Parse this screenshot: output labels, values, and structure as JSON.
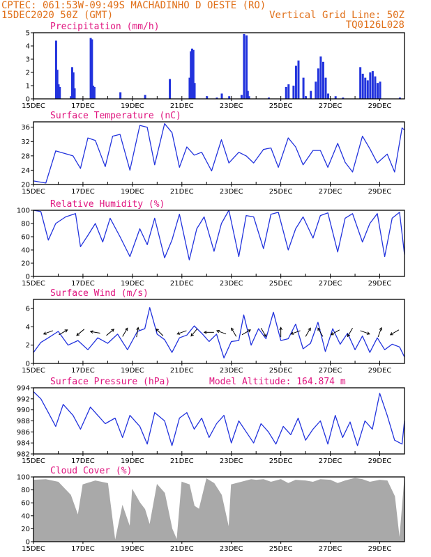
{
  "header": {
    "left_line1": "CPTEC:   061:53W-09:49S   MACHADINHO D OESTE (RO)",
    "left_line2": "15DEC2020 50Z (GMT)",
    "right_line2": "Vertical Grid Line: 50Z",
    "right_line3": "TQ0126L028"
  },
  "colors": {
    "header": "#e0701a",
    "title": "#e0147f",
    "line": "#2233dd",
    "bar": "#2233dd",
    "cloud": "#a9a9a9",
    "frame": "#000000"
  },
  "x_axis": {
    "start": "15DEC2020",
    "end": "30DEC2020",
    "tick_labels": [
      "15DEC",
      "17DEC",
      "19DEC",
      "21DEC",
      "23DEC",
      "25DEC",
      "27DEC",
      "29DEC"
    ],
    "tick_days": [
      15,
      17,
      19,
      21,
      23,
      25,
      27,
      29
    ]
  },
  "chart_data": [
    {
      "type": "bar",
      "title": "Precipitation (mm/h)",
      "ylim": [
        0,
        5
      ],
      "yticks": [
        0,
        1,
        2,
        3,
        4,
        5
      ],
      "x": [
        15.9,
        15.95,
        16.0,
        16.05,
        16.5,
        16.55,
        16.6,
        16.65,
        17.3,
        17.35,
        17.4,
        17.45,
        18.5,
        19.5,
        20.5,
        21.3,
        21.35,
        21.4,
        21.45,
        21.5,
        22.0,
        22.4,
        22.6,
        22.9,
        23.4,
        23.5,
        23.6,
        23.65,
        23.7,
        24.5,
        25.2,
        25.3,
        25.5,
        25.6,
        25.7,
        25.9,
        26.0,
        26.2,
        26.4,
        26.5,
        26.6,
        26.7,
        26.8,
        26.9,
        27.2,
        27.5,
        28.2,
        28.3,
        28.4,
        28.5,
        28.6,
        28.7,
        28.8,
        28.9,
        29.0,
        29.8
      ],
      "values": [
        4.4,
        2.2,
        1.1,
        0.9,
        0.2,
        2.4,
        2.0,
        0.8,
        4.6,
        4.5,
        1.0,
        0.9,
        0.5,
        0.3,
        1.5,
        1.6,
        3.6,
        3.8,
        3.7,
        1.2,
        0.2,
        0.1,
        0.4,
        0.2,
        0.3,
        4.9,
        4.8,
        0.6,
        0.2,
        0.1,
        0.9,
        1.1,
        1.0,
        2.5,
        2.9,
        1.6,
        0.2,
        0.6,
        1.3,
        2.3,
        3.2,
        2.8,
        1.6,
        0.4,
        0.2,
        0.1,
        2.4,
        1.9,
        1.6,
        1.4,
        2.0,
        2.1,
        1.7,
        1.2,
        1.3,
        0.1
      ]
    },
    {
      "type": "line",
      "title": "Surface Temperature (nC)",
      "ylim": [
        20,
        37.5
      ],
      "yticks": [
        20,
        24,
        28,
        32,
        36
      ],
      "x": [
        15.0,
        15.5,
        15.9,
        16.1,
        16.6,
        16.9,
        17.2,
        17.5,
        17.9,
        18.2,
        18.5,
        18.9,
        19.3,
        19.6,
        19.9,
        20.3,
        20.6,
        20.9,
        21.2,
        21.5,
        21.8,
        22.2,
        22.6,
        22.9,
        23.3,
        23.6,
        23.9,
        24.3,
        24.6,
        24.9,
        25.3,
        25.6,
        25.9,
        26.3,
        26.6,
        26.9,
        27.3,
        27.6,
        27.9,
        28.3,
        28.6,
        28.9,
        29.3,
        29.6,
        29.9,
        30.0
      ],
      "values": [
        21.0,
        20.4,
        29.4,
        29.0,
        28.0,
        24.5,
        33.0,
        32.3,
        25.0,
        33.5,
        34.0,
        24.0,
        36.5,
        36.0,
        25.5,
        37.0,
        34.5,
        24.8,
        30.5,
        28.2,
        29.0,
        23.8,
        32.5,
        26.0,
        29.0,
        28.0,
        26.0,
        29.8,
        30.2,
        24.8,
        33.0,
        30.5,
        25.5,
        29.5,
        29.5,
        24.8,
        31.5,
        26.2,
        23.5,
        33.5,
        30.0,
        26.0,
        28.5,
        23.5,
        35.8,
        35.2
      ]
    },
    {
      "type": "line",
      "title": "Relative Humidity (%)",
      "ylim": [
        0,
        100
      ],
      "yticks": [
        0,
        20,
        40,
        60,
        80,
        100
      ],
      "x": [
        15.0,
        15.3,
        15.6,
        15.9,
        16.3,
        16.7,
        16.9,
        17.2,
        17.5,
        17.8,
        18.1,
        18.5,
        18.9,
        19.3,
        19.6,
        19.9,
        20.3,
        20.6,
        20.9,
        21.3,
        21.6,
        21.9,
        22.3,
        22.6,
        22.9,
        23.3,
        23.6,
        23.9,
        24.3,
        24.6,
        24.9,
        25.3,
        25.6,
        25.9,
        26.3,
        26.6,
        26.9,
        27.3,
        27.6,
        27.9,
        28.3,
        28.6,
        28.9,
        29.2,
        29.5,
        29.8,
        30.0
      ],
      "values": [
        100,
        98,
        55,
        80,
        90,
        95,
        45,
        62,
        80,
        52,
        88,
        60,
        30,
        72,
        48,
        88,
        28,
        55,
        94,
        25,
        72,
        90,
        38,
        80,
        100,
        30,
        92,
        90,
        42,
        94,
        97,
        40,
        72,
        90,
        58,
        92,
        96,
        37,
        88,
        95,
        52,
        80,
        95,
        30,
        88,
        97,
        33
      ]
    },
    {
      "type": "line",
      "title": "Surface Wind (m/s)",
      "ylim": [
        0,
        7
      ],
      "yticks": [
        0,
        2,
        4,
        6
      ],
      "x": [
        15.0,
        15.3,
        15.6,
        16.0,
        16.4,
        16.8,
        17.2,
        17.6,
        18.0,
        18.4,
        18.8,
        19.2,
        19.5,
        19.7,
        20.0,
        20.3,
        20.6,
        20.9,
        21.2,
        21.5,
        21.8,
        22.1,
        22.4,
        22.7,
        23.0,
        23.3,
        23.5,
        23.8,
        24.1,
        24.4,
        24.7,
        25.0,
        25.3,
        25.6,
        25.9,
        26.2,
        26.5,
        26.8,
        27.1,
        27.4,
        27.7,
        28.0,
        28.3,
        28.6,
        28.9,
        29.2,
        29.5,
        29.8,
        30.0
      ],
      "values": [
        1.2,
        2.3,
        2.8,
        3.5,
        2.0,
        2.5,
        1.5,
        2.8,
        2.2,
        3.2,
        1.5,
        3.5,
        3.8,
        6.1,
        3.2,
        2.6,
        1.2,
        2.8,
        3.1,
        4.1,
        3.3,
        2.4,
        3.2,
        0.6,
        2.4,
        2.5,
        5.3,
        2.0,
        3.8,
        2.7,
        5.6,
        2.5,
        2.7,
        4.3,
        1.6,
        2.2,
        4.5,
        1.3,
        3.8,
        2.1,
        3.3,
        1.5,
        3.0,
        1.2,
        2.8,
        1.5,
        2.1,
        1.8,
        0.7
      ],
      "arrows": {
        "x": [
          15.6,
          16.2,
          16.9,
          17.5,
          18.1,
          18.7,
          19.2,
          20.1,
          21.0,
          21.5,
          22.1,
          22.6,
          23.1,
          23.6,
          24.3,
          25.0,
          25.6,
          26.1,
          26.6,
          27.2,
          27.8,
          28.4,
          29.0,
          29.6
        ],
        "dir_deg": [
          200,
          30,
          220,
          170,
          40,
          60,
          80,
          135,
          200,
          230,
          180,
          160,
          120,
          30,
          300,
          90,
          200,
          60,
          120,
          210,
          240,
          340,
          70,
          210
        ]
      }
    },
    {
      "type": "line",
      "title": "Surface Pressure (hPa)",
      "annotation": "Model Altitude: 164.874 m",
      "ylim": [
        982,
        994
      ],
      "yticks": [
        982,
        984,
        986,
        988,
        990,
        992,
        994
      ],
      "x": [
        15.0,
        15.3,
        15.6,
        15.9,
        16.2,
        16.6,
        16.9,
        17.3,
        17.6,
        17.9,
        18.3,
        18.6,
        18.9,
        19.3,
        19.6,
        19.9,
        20.3,
        20.6,
        20.9,
        21.2,
        21.5,
        21.8,
        22.1,
        22.4,
        22.7,
        23.0,
        23.3,
        23.6,
        23.9,
        24.2,
        24.5,
        24.8,
        25.1,
        25.4,
        25.7,
        26.0,
        26.3,
        26.6,
        26.9,
        27.2,
        27.5,
        27.8,
        28.1,
        28.4,
        28.7,
        29.0,
        29.3,
        29.6,
        29.9,
        30.0
      ],
      "values": [
        993.3,
        992.0,
        989.5,
        987.0,
        991.0,
        989.0,
        986.5,
        990.5,
        989.0,
        987.5,
        988.5,
        985.0,
        989.0,
        987.0,
        983.8,
        989.5,
        988.0,
        983.5,
        988.5,
        989.5,
        986.5,
        988.5,
        985.0,
        987.5,
        989.0,
        984.0,
        988.0,
        986.0,
        984.0,
        987.5,
        986.0,
        983.8,
        987.0,
        985.5,
        988.5,
        984.5,
        986.5,
        988.0,
        983.8,
        989.0,
        985.0,
        987.8,
        983.5,
        988.0,
        986.5,
        993.0,
        989.0,
        984.5,
        983.8,
        988.0
      ]
    },
    {
      "type": "area",
      "title": "Cloud Cover (%)",
      "ylim": [
        0,
        100
      ],
      "yticks": [
        0,
        20,
        40,
        60,
        80,
        100
      ],
      "x": [
        15.0,
        15.5,
        16.0,
        16.5,
        16.8,
        17.0,
        17.5,
        18.0,
        18.3,
        18.6,
        18.9,
        19.0,
        19.3,
        19.5,
        19.7,
        20.0,
        20.3,
        20.6,
        20.8,
        21.0,
        21.3,
        21.5,
        21.7,
        22.0,
        22.3,
        22.6,
        22.9,
        23.0,
        23.4,
        23.8,
        24.0,
        24.3,
        24.6,
        25.0,
        25.3,
        25.6,
        26.0,
        26.3,
        26.6,
        27.0,
        27.3,
        27.6,
        28.0,
        28.3,
        28.6,
        29.0,
        29.3,
        29.6,
        29.8,
        30.0
      ],
      "values": [
        95,
        96,
        92,
        72,
        40,
        88,
        94,
        90,
        0,
        55,
        22,
        80,
        60,
        50,
        25,
        88,
        75,
        20,
        2,
        92,
        88,
        55,
        50,
        97,
        90,
        72,
        20,
        88,
        92,
        96,
        95,
        96,
        92,
        96,
        90,
        95,
        94,
        92,
        96,
        95,
        90,
        94,
        98,
        96,
        92,
        95,
        94,
        70,
        2,
        95
      ]
    }
  ]
}
